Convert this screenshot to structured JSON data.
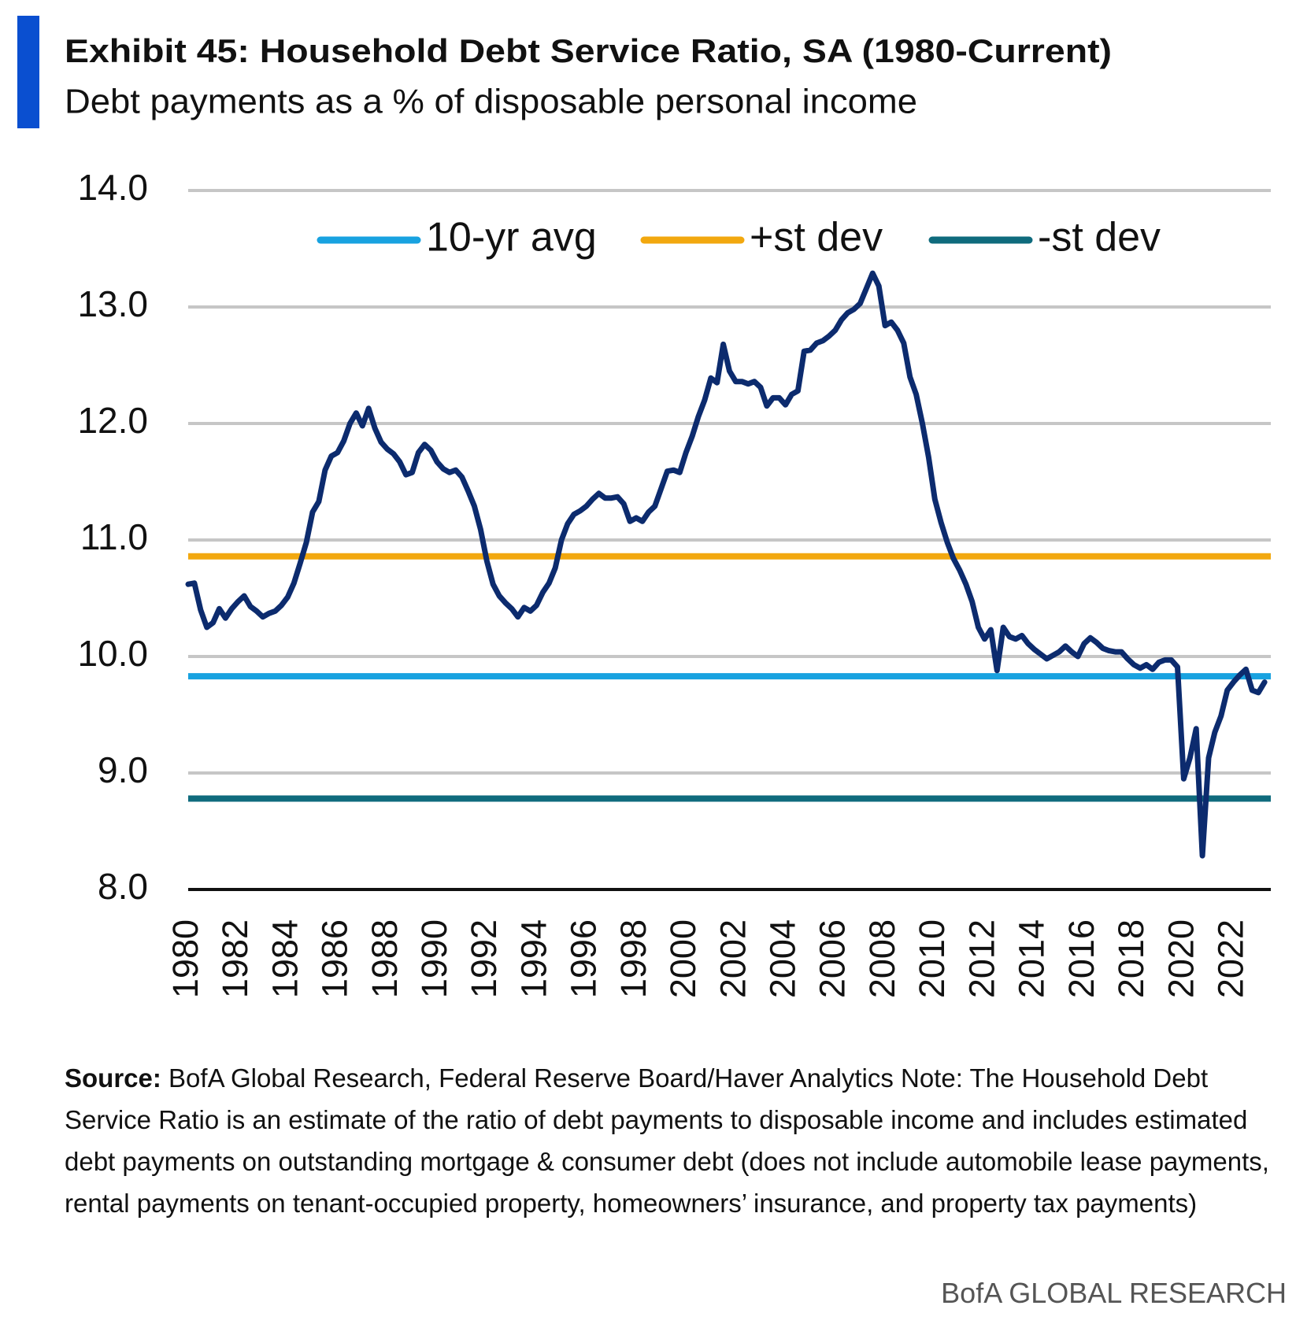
{
  "chart_data": {
    "type": "line",
    "title": "Exhibit 45: Household Debt Service Ratio, SA (1980-Current)",
    "subtitle": "Debt payments as a % of disposable personal income",
    "x": [
      1980,
      1980.25,
      1980.5,
      1980.75,
      1981,
      1981.25,
      1981.5,
      1981.75,
      1982,
      1982.25,
      1982.5,
      1982.75,
      1983,
      1983.25,
      1983.5,
      1983.75,
      1984,
      1984.25,
      1984.5,
      1984.75,
      1985,
      1985.25,
      1985.5,
      1985.75,
      1986,
      1986.25,
      1986.5,
      1986.75,
      1987,
      1987.25,
      1987.5,
      1987.75,
      1988,
      1988.25,
      1988.5,
      1988.75,
      1989,
      1989.25,
      1989.5,
      1989.75,
      1990,
      1990.25,
      1990.5,
      1990.75,
      1991,
      1991.25,
      1991.5,
      1991.75,
      1992,
      1992.25,
      1992.5,
      1992.75,
      1993,
      1993.25,
      1993.5,
      1993.75,
      1994,
      1994.25,
      1994.5,
      1994.75,
      1995,
      1995.25,
      1995.5,
      1995.75,
      1996,
      1996.25,
      1996.5,
      1996.75,
      1997,
      1997.25,
      1997.5,
      1997.75,
      1998,
      1998.25,
      1998.5,
      1998.75,
      1999,
      1999.25,
      1999.5,
      1999.75,
      2000,
      2000.25,
      2000.5,
      2000.75,
      2001,
      2001.25,
      2001.5,
      2001.75,
      2002,
      2002.25,
      2002.5,
      2002.75,
      2003,
      2003.25,
      2003.5,
      2003.75,
      2004,
      2004.25,
      2004.5,
      2004.75,
      2005,
      2005.25,
      2005.5,
      2005.75,
      2006,
      2006.25,
      2006.5,
      2006.75,
      2007,
      2007.25,
      2007.5,
      2007.75,
      2008,
      2008.25,
      2008.5,
      2008.75,
      2009,
      2009.25,
      2009.5,
      2009.75,
      2010,
      2010.25,
      2010.5,
      2010.75,
      2011,
      2011.25,
      2011.5,
      2011.75,
      2012,
      2012.25,
      2012.5,
      2012.75,
      2013,
      2013.25,
      2013.5,
      2013.75,
      2014,
      2014.25,
      2014.5,
      2014.75,
      2015,
      2015.25,
      2015.5,
      2015.75,
      2016,
      2016.25,
      2016.5,
      2016.75,
      2017,
      2017.25,
      2017.5,
      2017.75,
      2018,
      2018.25,
      2018.5,
      2018.75,
      2019,
      2019.25,
      2019.5,
      2019.75,
      2020,
      2020.25,
      2020.5,
      2020.75,
      2021,
      2021.25,
      2021.5,
      2021.75,
      2022,
      2022.25,
      2022.5,
      2022.75,
      2023,
      2023.25
    ],
    "series": [
      {
        "color": "#0c2b6e",
        "values": [
          10.62,
          10.63,
          10.4,
          10.25,
          10.29,
          10.41,
          10.33,
          10.41,
          10.47,
          10.52,
          10.43,
          10.39,
          10.34,
          10.37,
          10.39,
          10.44,
          10.51,
          10.63,
          10.8,
          10.98,
          11.24,
          11.33,
          11.6,
          11.72,
          11.75,
          11.85,
          12.0,
          12.09,
          11.98,
          12.13,
          11.96,
          11.84,
          11.78,
          11.74,
          11.67,
          11.56,
          11.58,
          11.75,
          11.82,
          11.77,
          11.67,
          11.61,
          11.58,
          11.6,
          11.54,
          11.42,
          11.29,
          11.09,
          10.82,
          10.62,
          10.52,
          10.46,
          10.41,
          10.34,
          10.42,
          10.39,
          10.44,
          10.55,
          10.63,
          10.76,
          11.0,
          11.14,
          11.22,
          11.25,
          11.29,
          11.35,
          11.4,
          11.36,
          11.36,
          11.37,
          11.31,
          11.16,
          11.19,
          11.16,
          11.24,
          11.29,
          11.44,
          11.59,
          11.6,
          11.58,
          11.75,
          11.89,
          12.06,
          12.2,
          12.39,
          12.35,
          12.68,
          12.45,
          12.36,
          12.36,
          12.34,
          12.36,
          12.31,
          12.15,
          12.22,
          12.22,
          12.16,
          12.25,
          12.28,
          12.62,
          12.63,
          12.69,
          12.71,
          12.75,
          12.8,
          12.89,
          12.95,
          12.98,
          13.03,
          13.16,
          13.29,
          13.18,
          12.84,
          12.87,
          12.8,
          12.69,
          12.4,
          12.25,
          12.0,
          11.71,
          11.35,
          11.15,
          10.98,
          10.84,
          10.74,
          10.62,
          10.47,
          10.25,
          10.15,
          10.23,
          9.88,
          10.25,
          10.17,
          10.15,
          10.18,
          10.11,
          10.06,
          10.02,
          9.98,
          10.01,
          10.04,
          10.09,
          10.04,
          10.0,
          10.11,
          10.16,
          10.12,
          10.07,
          10.05,
          10.04,
          10.04,
          9.98,
          9.93,
          9.9,
          9.93,
          9.89,
          9.95,
          9.97,
          9.97,
          9.91,
          8.95,
          9.13,
          9.38,
          8.29,
          9.13,
          9.35,
          9.49,
          9.71,
          9.78,
          9.84,
          9.89,
          9.71,
          9.69,
          9.78
        ]
      }
    ],
    "reference_lines": [
      {
        "name": "10-yr avg",
        "color": "#18a2e0",
        "value": 9.83
      },
      {
        "name": "+st dev",
        "color": "#f2a80f",
        "value": 10.86
      },
      {
        "name": "-st dev",
        "color": "#0f6b7d",
        "value": 8.78
      }
    ],
    "xlim": [
      1980,
      2023.5
    ],
    "xticks": [
      1980,
      1982,
      1984,
      1986,
      1988,
      1990,
      1992,
      1994,
      1996,
      1998,
      2000,
      2002,
      2004,
      2006,
      2008,
      2010,
      2012,
      2014,
      2016,
      2018,
      2020,
      2022
    ],
    "ylim": [
      8,
      14
    ],
    "yticks": [
      {
        "value": 8,
        "label": "8.0"
      },
      {
        "value": 9,
        "label": "9.0"
      },
      {
        "value": 10,
        "label": "10.0"
      },
      {
        "value": 11,
        "label": "11.0"
      },
      {
        "value": 12,
        "label": "12.0"
      },
      {
        "value": 13,
        "label": "13.0"
      },
      {
        "value": 14,
        "label": "14.0"
      }
    ],
    "grid": true,
    "legend": "top",
    "source_label": "Source:",
    "note": "BofA Global Research, Federal Reserve Board/Haver Analytics Note: The Household Debt Service Ratio is an estimate of the ratio of debt payments to disposable income and includes estimated debt payments on outstanding mortgage & consumer debt (does not include automobile lease payments, rental payments on tenant-occupied property, homeowners’ insurance, and property tax payments)",
    "branding": "BofA GLOBAL RESEARCH"
  }
}
